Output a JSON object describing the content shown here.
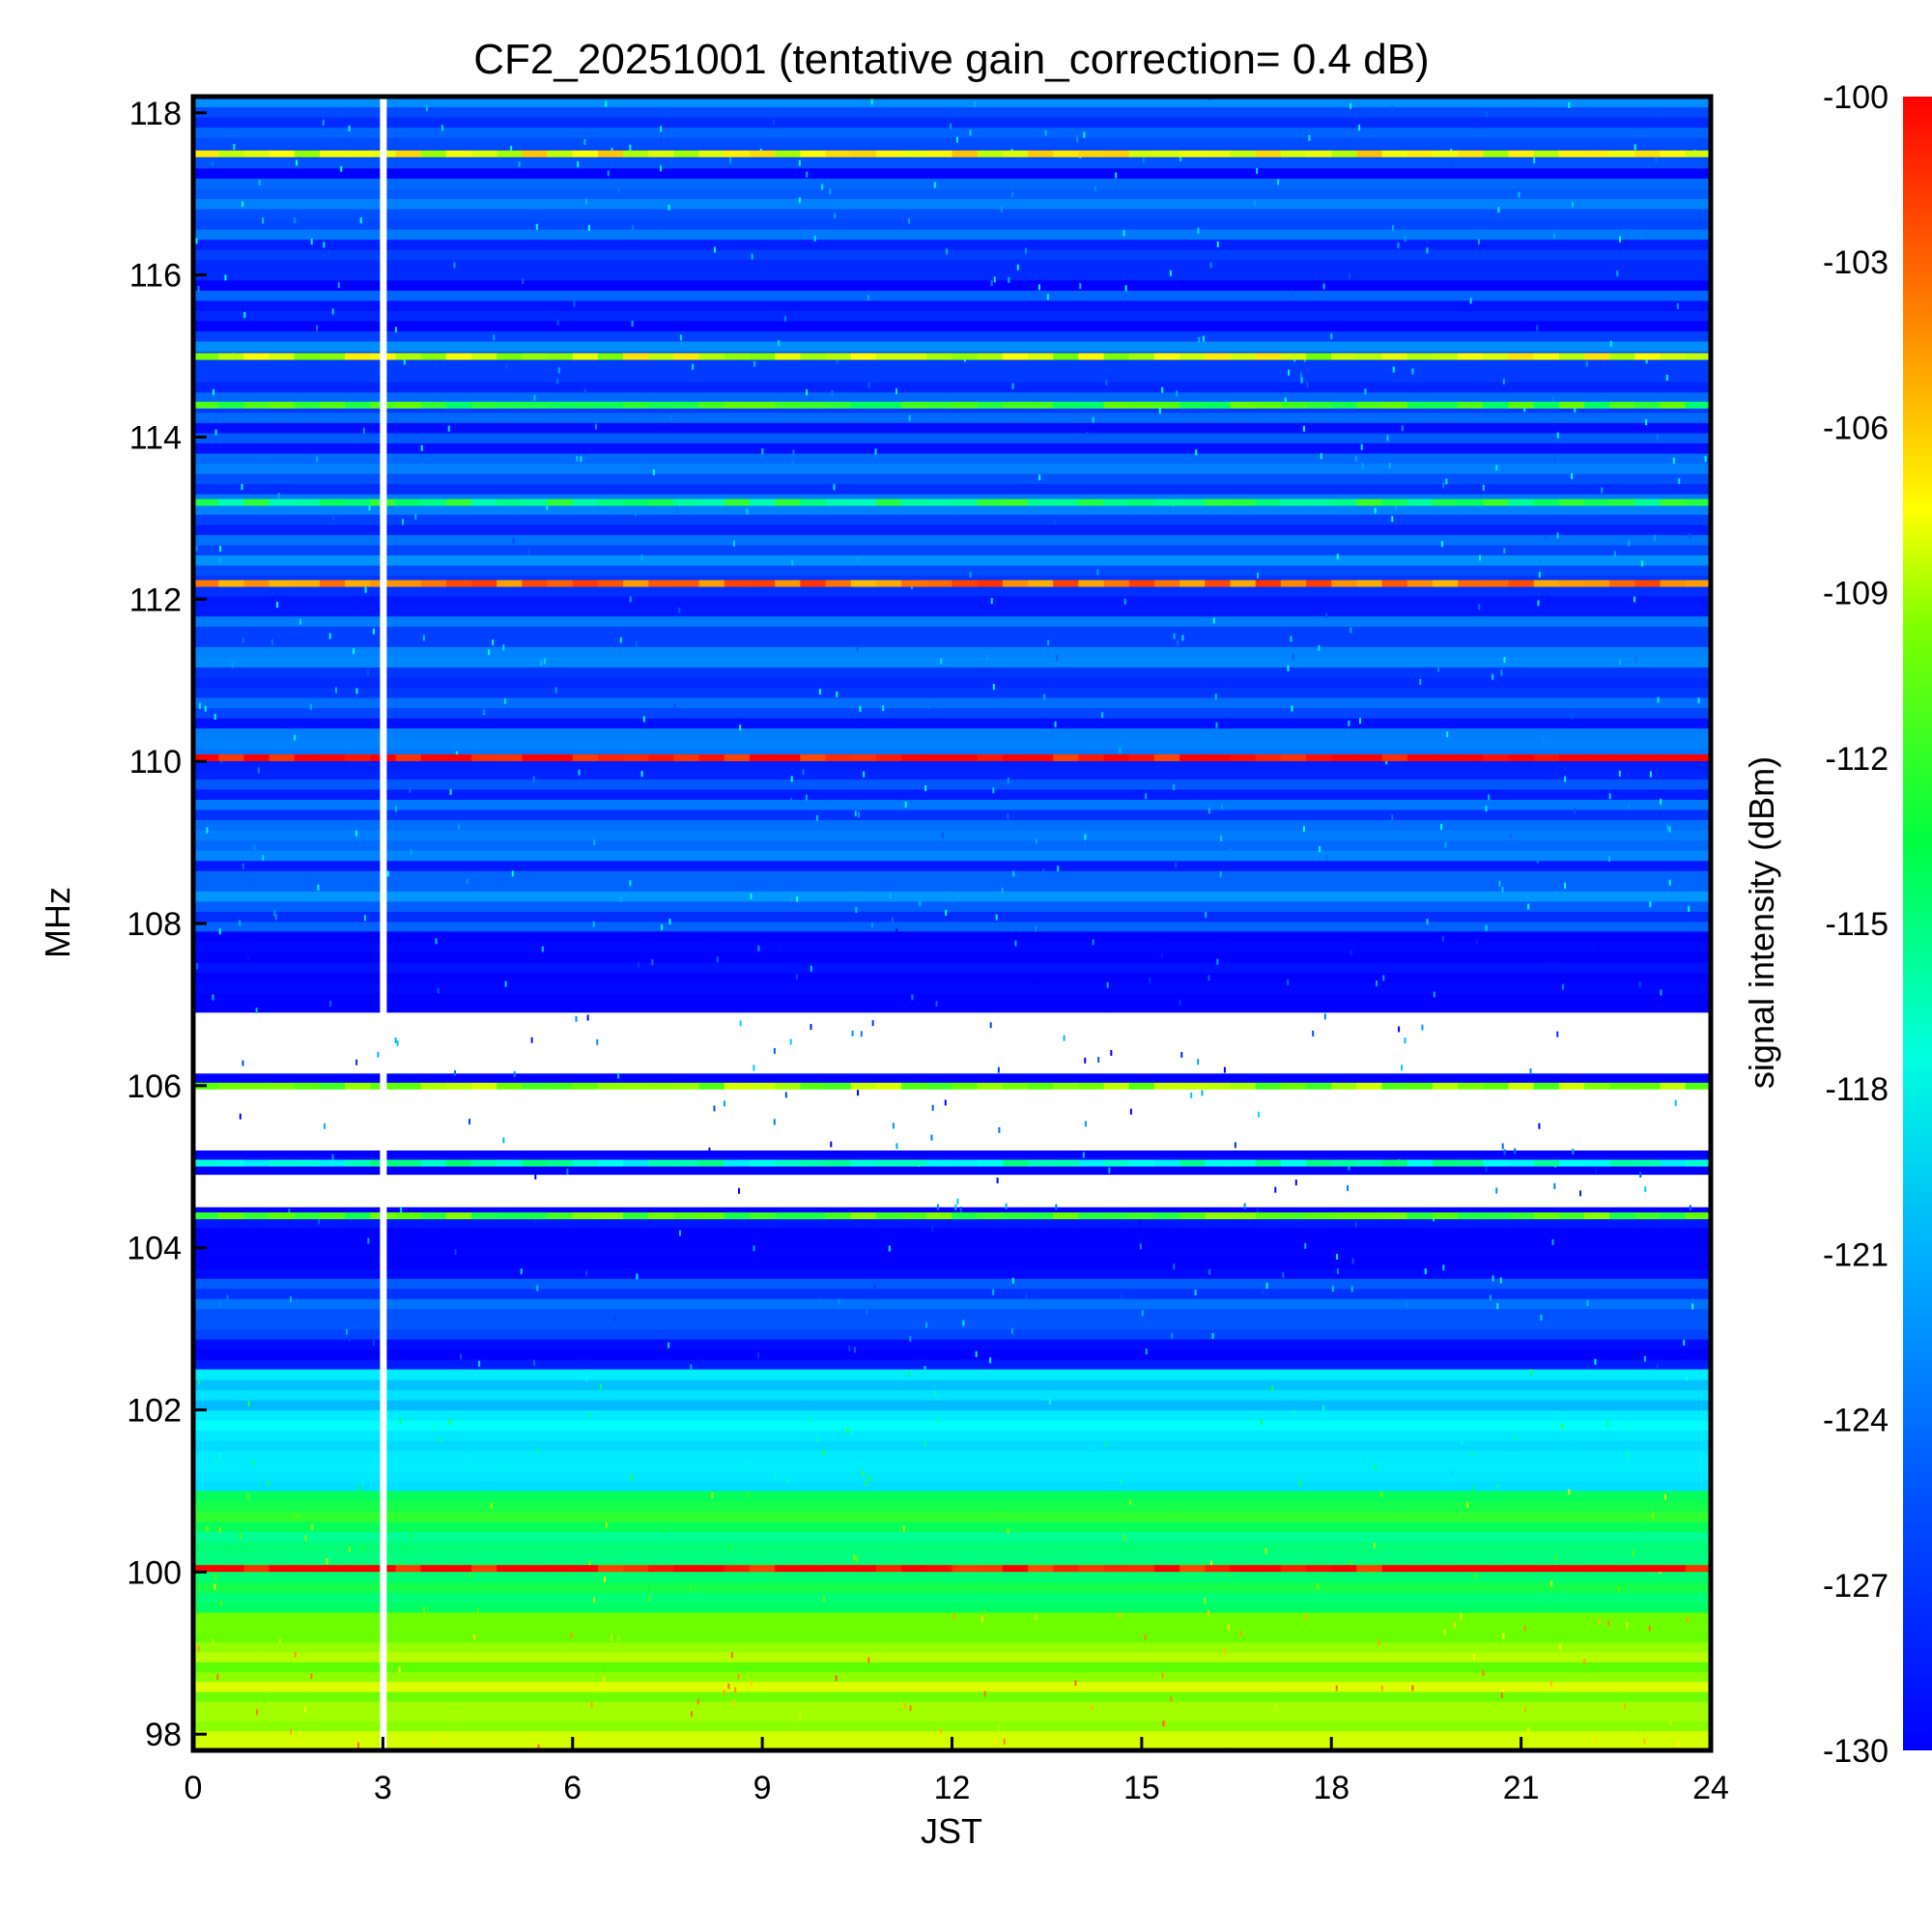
{
  "chart_data": {
    "type": "heatmap",
    "title": "CF2_20251001 (tentative gain_correction=  0.4 dB)",
    "xlabel": "JST",
    "ylabel": "MHz",
    "colorbar_label": "signal intensity (dBm)",
    "xlim": [
      0,
      24
    ],
    "ylim": [
      97.8,
      118.2
    ],
    "x_ticks": [
      "0",
      "3",
      "6",
      "9",
      "12",
      "15",
      "18",
      "21",
      "24"
    ],
    "y_ticks": [
      "98",
      "100",
      "102",
      "104",
      "106",
      "108",
      "110",
      "112",
      "114",
      "116",
      "118"
    ],
    "colorbar_range": [
      -130,
      -100
    ],
    "colorbar_ticks": [
      "-100",
      "-103",
      "-106",
      "-109",
      "-112",
      "-115",
      "-118",
      "-121",
      "-124",
      "-127",
      "-130"
    ],
    "colormap": [
      "#0000ff",
      "#00a0ff",
      "#00ffff",
      "#00ff60",
      "#60ff00",
      "#ffff00",
      "#ff8000",
      "#ff0000"
    ],
    "data_gap_jst": 3.0,
    "strong_bands_mhz": [
      {
        "freq": 117.5,
        "dbm": -109
      },
      {
        "freq": 115.0,
        "dbm": -110
      },
      {
        "freq": 114.4,
        "dbm": -115
      },
      {
        "freq": 113.2,
        "dbm": -117
      },
      {
        "freq": 112.2,
        "dbm": -104
      },
      {
        "freq": 110.05,
        "dbm": -100
      },
      {
        "freq": 106.0,
        "dbm": -112
      },
      {
        "freq": 105.05,
        "dbm": -120
      },
      {
        "freq": 104.4,
        "dbm": -114
      },
      {
        "freq": 100.05,
        "dbm": -100
      }
    ],
    "background_level": [
      {
        "freq_from": 107.9,
        "freq_to": 118.2,
        "dbm": -128
      },
      {
        "freq_from": 104.0,
        "freq_to": 107.9,
        "dbm": -131
      },
      {
        "freq_from": 102.5,
        "freq_to": 104.0,
        "dbm": -129
      },
      {
        "freq_from": 101.0,
        "freq_to": 102.5,
        "dbm": -123
      },
      {
        "freq_from": 99.5,
        "freq_to": 101.0,
        "dbm": -117
      },
      {
        "freq_from": 97.8,
        "freq_to": 99.5,
        "dbm": -111
      }
    ]
  }
}
